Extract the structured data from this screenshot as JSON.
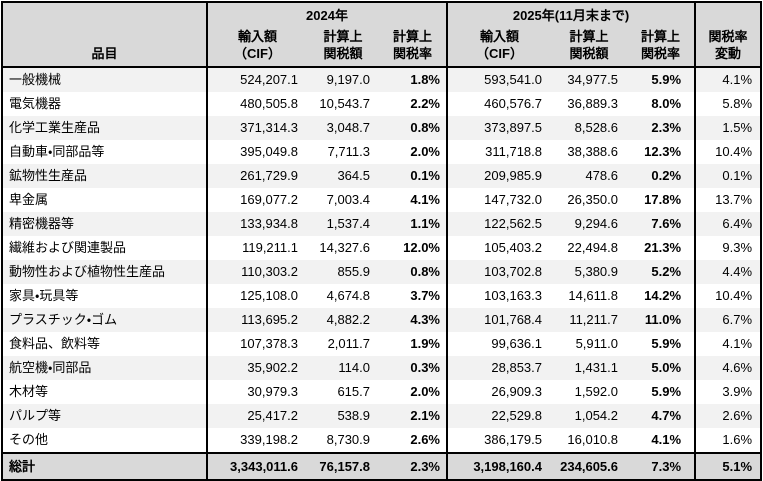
{
  "colors": {
    "header_bg": "#d9d9d9",
    "total_row_bg": "#d9d9d9",
    "alt_row_bg": "#f2f2f2",
    "row_bg": "#ffffff",
    "border": "#000000",
    "text": "#000000"
  },
  "table": {
    "item_header": "品目",
    "group_2024": "2024年",
    "group_2025": "2025年(11月末まで)",
    "sub_headers": [
      "輸入額\n（CIF）",
      "計算上\n関税額",
      "計算上\n関税率"
    ],
    "change_header": "関税率\n変動"
  },
  "chart_data": {
    "type": "table",
    "title": "",
    "column_groups": [
      "品目",
      "2024年",
      "2025年(11月末まで)",
      "関税率変動"
    ],
    "columns": [
      "品目",
      "2024年 輸入額（CIF）",
      "2024年 計算上関税額",
      "2024年 計算上関税率",
      "2025年 輸入額（CIF）",
      "2025年 計算上関税額",
      "2025年 計算上関税率",
      "関税率変動"
    ],
    "rows": [
      [
        "一般機械",
        "524,207.1",
        "9,197.0",
        "1.8%",
        "593,541.0",
        "34,977.5",
        "5.9%",
        "4.1%"
      ],
      [
        "電気機器",
        "480,505.8",
        "10,543.7",
        "2.2%",
        "460,576.7",
        "36,889.3",
        "8.0%",
        "5.8%"
      ],
      [
        "化学工業生産品",
        "371,314.3",
        "3,048.7",
        "0.8%",
        "373,897.5",
        "8,528.6",
        "2.3%",
        "1.5%"
      ],
      [
        "自動車・同部品等",
        "395,049.8",
        "7,711.3",
        "2.0%",
        "311,718.8",
        "38,388.6",
        "12.3%",
        "10.4%"
      ],
      [
        "鉱物性生産品",
        "261,729.9",
        "364.5",
        "0.1%",
        "209,985.9",
        "478.6",
        "0.2%",
        "0.1%"
      ],
      [
        "卑金属",
        "169,077.2",
        "7,003.4",
        "4.1%",
        "147,732.0",
        "26,350.0",
        "17.8%",
        "13.7%"
      ],
      [
        "精密機器等",
        "133,934.8",
        "1,537.4",
        "1.1%",
        "122,562.5",
        "9,294.6",
        "7.6%",
        "6.4%"
      ],
      [
        "繊維および関連製品",
        "119,211.1",
        "14,327.6",
        "12.0%",
        "105,403.2",
        "22,494.8",
        "21.3%",
        "9.3%"
      ],
      [
        "動物性および植物性生産品",
        "110,303.2",
        "855.9",
        "0.8%",
        "103,702.8",
        "5,380.9",
        "5.2%",
        "4.4%"
      ],
      [
        "家具・玩具等",
        "125,108.0",
        "4,674.8",
        "3.7%",
        "103,163.3",
        "14,611.8",
        "14.2%",
        "10.4%"
      ],
      [
        "プラスチック・ゴム",
        "113,695.2",
        "4,882.2",
        "4.3%",
        "101,768.4",
        "11,211.7",
        "11.0%",
        "6.7%"
      ],
      [
        "食料品、飲料等",
        "107,378.3",
        "2,011.7",
        "1.9%",
        "99,636.1",
        "5,911.0",
        "5.9%",
        "4.1%"
      ],
      [
        "航空機・同部品",
        "35,902.2",
        "114.0",
        "0.3%",
        "28,853.7",
        "1,431.1",
        "5.0%",
        "4.6%"
      ],
      [
        "木材等",
        "30,979.3",
        "615.7",
        "2.0%",
        "26,909.3",
        "1,592.0",
        "5.9%",
        "3.9%"
      ],
      [
        "パルプ等",
        "25,417.2",
        "538.9",
        "2.1%",
        "22,529.8",
        "1,054.2",
        "4.7%",
        "2.6%"
      ],
      [
        "その他",
        "339,198.2",
        "8,730.9",
        "2.6%",
        "386,179.5",
        "16,010.8",
        "4.1%",
        "1.6%"
      ]
    ],
    "total": [
      "総計",
      "3,343,011.6",
      "76,157.8",
      "2.3%",
      "3,198,160.4",
      "234,605.6",
      "7.3%",
      "5.1%"
    ]
  }
}
